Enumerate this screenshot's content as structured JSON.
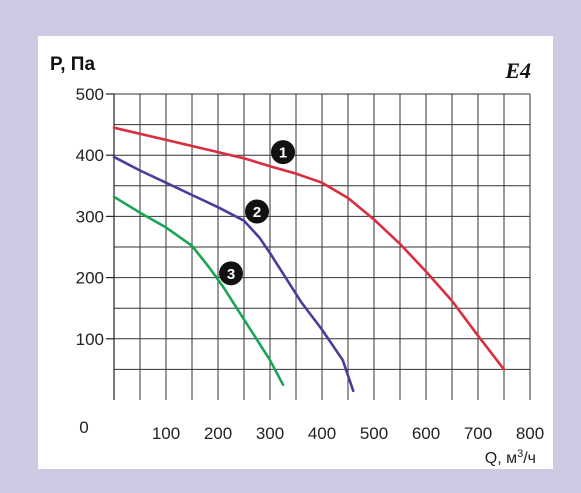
{
  "chart_data": {
    "type": "line",
    "tag": "E4",
    "ylabel": "P, Па",
    "xlabel_main": "Q, м",
    "xlabel_sup": "3",
    "xlabel_tail": "/ч",
    "origin_label": "0",
    "xlim": [
      0,
      800
    ],
    "ylim": [
      0,
      500
    ],
    "x_ticks": [
      100,
      200,
      300,
      400,
      500,
      600,
      700,
      800
    ],
    "y_ticks": [
      100,
      200,
      300,
      400,
      500
    ],
    "grid": true,
    "series": [
      {
        "name": "1",
        "color": "#d92e3f",
        "points": [
          [
            0,
            445
          ],
          [
            100,
            425
          ],
          [
            200,
            405
          ],
          [
            250,
            395
          ],
          [
            300,
            382
          ],
          [
            350,
            370
          ],
          [
            400,
            355
          ],
          [
            450,
            330
          ],
          [
            500,
            295
          ],
          [
            550,
            255
          ],
          [
            600,
            210
          ],
          [
            650,
            162
          ],
          [
            700,
            105
          ],
          [
            750,
            50
          ]
        ]
      },
      {
        "name": "2",
        "color": "#4f3a9c",
        "points": [
          [
            0,
            397
          ],
          [
            50,
            375
          ],
          [
            100,
            355
          ],
          [
            150,
            335
          ],
          [
            200,
            315
          ],
          [
            250,
            293
          ],
          [
            280,
            265
          ],
          [
            300,
            240
          ],
          [
            330,
            200
          ],
          [
            360,
            160
          ],
          [
            400,
            115
          ],
          [
            440,
            65
          ],
          [
            460,
            15
          ]
        ]
      },
      {
        "name": "3",
        "color": "#1aa554",
        "points": [
          [
            0,
            332
          ],
          [
            50,
            306
          ],
          [
            100,
            282
          ],
          [
            150,
            252
          ],
          [
            180,
            220
          ],
          [
            210,
            185
          ],
          [
            240,
            145
          ],
          [
            270,
            105
          ],
          [
            300,
            65
          ],
          [
            325,
            25
          ]
        ]
      }
    ],
    "labels": [
      {
        "text": "1",
        "x": 325,
        "y": 405
      },
      {
        "text": "2",
        "x": 275,
        "y": 308
      },
      {
        "text": "3",
        "x": 225,
        "y": 207
      }
    ]
  }
}
